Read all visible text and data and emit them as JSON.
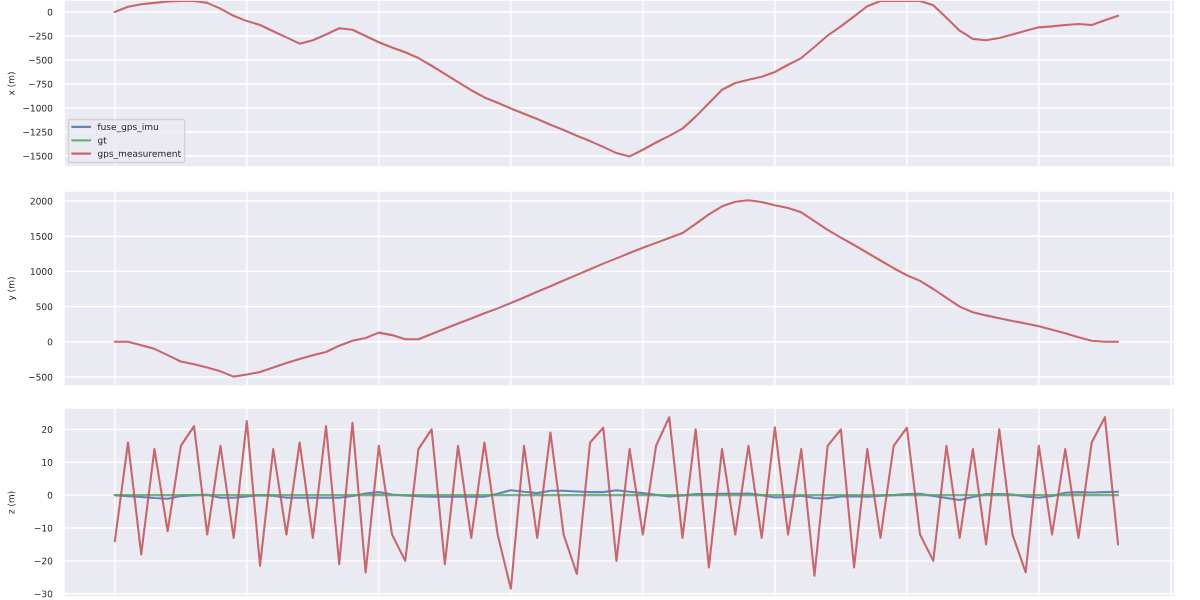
{
  "chart_data": [
    {
      "type": "line",
      "ylabel": "x (m)",
      "categories": [
        null,
        null,
        null,
        null,
        null,
        null,
        null,
        null,
        null,
        null,
        null,
        null,
        null,
        null,
        null,
        null,
        null,
        null,
        null,
        null,
        null,
        null,
        null,
        null,
        null,
        null,
        null,
        null,
        null,
        null,
        null,
        null,
        null,
        null,
        null,
        null,
        null,
        null,
        null,
        null,
        null,
        null,
        null,
        null,
        null,
        null,
        null,
        null,
        null,
        null,
        null,
        null,
        null,
        null,
        null,
        null,
        null,
        null,
        null,
        null,
        null,
        null,
        null,
        null,
        null,
        null,
        null,
        null,
        null,
        null,
        null,
        null,
        null,
        null,
        null,
        null,
        null
      ],
      "tick_labels": "y",
      "ylim": [
        -1615,
        125
      ],
      "yticks": [
        -1500,
        -1250,
        -1000,
        -750,
        -500,
        -250,
        0
      ],
      "grid": true,
      "legend": "bottom left",
      "series": [
        {
          "name": "fuse_gps_imu",
          "color": "#4c72b0",
          "values": [
            null,
            null,
            null,
            null,
            null,
            null,
            null,
            null,
            null,
            null,
            null,
            null,
            null,
            null,
            null,
            null,
            null,
            null,
            null,
            null,
            null,
            null,
            null,
            null,
            null,
            null,
            null,
            null,
            null,
            null,
            null,
            null,
            null,
            null,
            null,
            null,
            null,
            null,
            null,
            null,
            null,
            null,
            null,
            null,
            null,
            null,
            null,
            null,
            null,
            null,
            null,
            null,
            null,
            null,
            null,
            null,
            null,
            null,
            null,
            null,
            null,
            null,
            null,
            null,
            null,
            null,
            null,
            null,
            null,
            null,
            null,
            null,
            null,
            null,
            null,
            null,
            null
          ]
        },
        {
          "name": "gt",
          "color": "#55a868",
          "values": [
            null,
            null,
            null,
            null,
            null,
            null,
            null,
            null,
            null,
            null,
            null,
            null,
            null,
            null,
            null,
            null,
            null,
            null,
            null,
            null,
            null,
            null,
            null,
            null,
            null,
            null,
            null,
            null,
            null,
            null,
            null,
            null,
            null,
            null,
            null,
            null,
            null,
            null,
            null,
            null,
            null,
            null,
            null,
            null,
            null,
            null,
            null,
            null,
            null,
            null,
            null,
            null,
            null,
            null,
            null,
            null,
            null,
            null,
            null,
            null,
            null,
            null,
            null,
            null,
            null,
            null,
            null,
            null,
            null,
            null,
            null,
            null,
            null,
            null,
            null,
            null,
            null
          ]
        },
        {
          "name": "gps_measurement",
          "color": "#c44e52",
          "values": [
            0,
            55,
            80,
            95,
            110,
            115,
            115,
            95,
            35,
            -40,
            -95,
            -135,
            -200,
            -265,
            -330,
            -295,
            -235,
            -170,
            -185,
            -250,
            -315,
            -370,
            -420,
            -480,
            -560,
            -645,
            -730,
            -815,
            -890,
            -945,
            -1005,
            -1060,
            -1115,
            -1175,
            -1230,
            -1290,
            -1345,
            -1405,
            -1470,
            -1505,
            -1435,
            -1360,
            -1290,
            -1215,
            -1090,
            -950,
            -810,
            -740,
            -705,
            -675,
            -625,
            -550,
            -480,
            -365,
            -245,
            -150,
            -45,
            60,
            115,
            115,
            115,
            115,
            70,
            -60,
            -195,
            -280,
            -295,
            -270,
            -235,
            -195,
            -160,
            -150,
            -135,
            -125,
            -135,
            -85,
            -40
          ]
        }
      ]
    },
    {
      "type": "line",
      "ylabel": "y (m)",
      "categories": [
        null,
        null,
        null,
        null,
        null,
        null,
        null,
        null,
        null,
        null,
        null,
        null,
        null,
        null,
        null,
        null,
        null,
        null,
        null,
        null,
        null,
        null,
        null,
        null,
        null,
        null,
        null,
        null,
        null,
        null,
        null,
        null,
        null,
        null,
        null,
        null,
        null,
        null,
        null,
        null,
        null,
        null,
        null,
        null,
        null,
        null,
        null,
        null,
        null,
        null,
        null,
        null,
        null,
        null,
        null,
        null,
        null,
        null,
        null,
        null,
        null,
        null,
        null,
        null,
        null,
        null,
        null,
        null,
        null,
        null,
        null,
        null,
        null,
        null,
        null,
        null,
        null
      ],
      "tick_labels": "y",
      "ylim": [
        -628,
        2142
      ],
      "yticks": [
        -500,
        0,
        500,
        1000,
        1500,
        2000
      ],
      "grid": true,
      "series": [
        {
          "color": "#c44e52",
          "values": [
            0,
            0,
            -50,
            -100,
            -190,
            -280,
            -320,
            -365,
            -420,
            -495,
            -465,
            -430,
            -365,
            -300,
            -245,
            -190,
            -145,
            -55,
            15,
            55,
            130,
            95,
            35,
            35,
            110,
            185,
            260,
            330,
            405,
            475,
            550,
            630,
            710,
            790,
            870,
            950,
            1030,
            1110,
            1185,
            1260,
            1335,
            1405,
            1475,
            1545,
            1675,
            1810,
            1925,
            1990,
            2010,
            1985,
            1940,
            1900,
            1840,
            1715,
            1590,
            1480,
            1375,
            1265,
            1155,
            1045,
            945,
            865,
            750,
            625,
            500,
            420,
            375,
            335,
            295,
            260,
            220,
            170,
            120,
            65,
            15,
            0,
            0
          ]
        }
      ]
    },
    {
      "type": "line",
      "ylabel": "z (m)",
      "categories": [
        null,
        null,
        null,
        null,
        null,
        null,
        null,
        null,
        null,
        null,
        null,
        null,
        null,
        null,
        null,
        null,
        null,
        null,
        null,
        null,
        null,
        null,
        null,
        null,
        null,
        null,
        null,
        null,
        null,
        null,
        null,
        null,
        null,
        null,
        null,
        null,
        null,
        null,
        null,
        null,
        null,
        null,
        null,
        null,
        null,
        null,
        null,
        null,
        null,
        null,
        null,
        null,
        null,
        null,
        null,
        null,
        null,
        null,
        null,
        null,
        null,
        null,
        null,
        null,
        null,
        null,
        null,
        null,
        null,
        null,
        null,
        null,
        null,
        null,
        null,
        null,
        null
      ],
      "tick_labels": "y",
      "ylim": [
        -31,
        26.5
      ],
      "yticks": [
        -30,
        -20,
        -10,
        0,
        10,
        20
      ],
      "grid": true,
      "series": [
        {
          "color": "#4c72b0",
          "values": [
            0,
            -0.3,
            -0.6,
            -0.9,
            -1.1,
            -0.3,
            0,
            0.1,
            -0.8,
            -0.8,
            -0.4,
            0,
            -0.2,
            -0.8,
            -0.8,
            -0.8,
            -0.8,
            -0.8,
            -0.3,
            0.5,
            0.9,
            0.2,
            -0.1,
            -0.3,
            -0.5,
            -0.5,
            -0.5,
            -0.5,
            -0.5,
            0.4,
            1.5,
            1,
            0.6,
            1.3,
            1.3,
            1.1,
            0.9,
            0.9,
            1.5,
            1,
            0.6,
            0.1,
            -0.4,
            -0.1,
            0.3,
            0.3,
            0.4,
            0.4,
            0.5,
            0,
            -0.7,
            -0.6,
            -0.2,
            -0.9,
            -1,
            -0.4,
            -0.3,
            -0.5,
            -0.2,
            0,
            0.3,
            0.4,
            -0.3,
            -0.9,
            -1.5,
            -0.6,
            0.3,
            0.3,
            0.2,
            -0.4,
            -0.8,
            -0.3,
            0.7,
            0.9,
            0.8,
            0.9,
            1
          ]
        },
        {
          "color": "#55a868",
          "values": [
            0,
            0,
            0,
            0,
            0,
            0,
            0,
            0,
            0,
            0,
            0,
            0,
            0,
            0,
            0,
            0,
            0,
            0,
            0,
            0,
            0,
            0,
            0,
            0,
            0,
            0,
            0,
            0,
            0,
            0,
            0,
            0,
            0,
            0,
            0,
            0,
            0,
            0,
            0,
            0,
            0,
            0,
            0,
            0,
            0,
            0,
            0,
            0,
            0,
            0,
            0,
            0,
            0,
            0,
            0,
            0,
            0,
            0,
            0,
            0,
            0,
            0,
            0,
            0,
            0,
            0,
            0,
            0,
            0,
            0,
            0,
            0,
            0,
            0,
            0,
            0,
            0
          ]
        },
        {
          "color": "#c44e52",
          "values": [
            -14,
            16,
            -18,
            14,
            -11,
            15,
            21,
            -12,
            15,
            -13,
            22.5,
            -21.5,
            14,
            -12,
            16,
            -13,
            21,
            -21,
            22,
            -23.5,
            15,
            -12,
            -20,
            14,
            20,
            -21,
            15,
            -13,
            16,
            -12,
            -28.5,
            15,
            -13,
            19,
            -12,
            -24,
            16,
            20.5,
            -20,
            14,
            -12,
            15,
            23.7,
            -13,
            20,
            -22,
            14,
            -12,
            15,
            -13,
            20.6,
            -12,
            14,
            -24.5,
            15,
            20,
            -22,
            14,
            -13,
            15,
            20.5,
            -12,
            -20,
            15,
            -13,
            14,
            -15,
            20,
            -12,
            -23.5,
            15,
            -12,
            14,
            -13,
            16,
            23.7,
            -15
          ]
        }
      ]
    }
  ]
}
